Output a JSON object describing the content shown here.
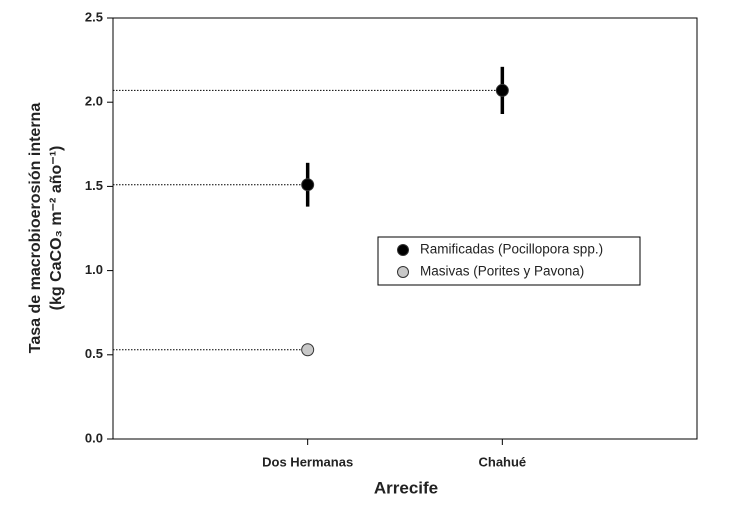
{
  "chart_data": {
    "type": "errorbar",
    "xlabel": "Arrecife",
    "ylabel": [
      "Tasa de macrobioerosión interna",
      "(kg CaCO₃ m⁻² año⁻¹)"
    ],
    "categories": [
      "Dos Hermanas",
      "Chahué"
    ],
    "series": [
      {
        "name": "Ramificadas  (Pocillopora spp.)",
        "color": "#000000",
        "values": [
          1.51,
          2.07
        ],
        "errors": [
          0.13,
          0.14
        ]
      },
      {
        "name": "Masivas (Porites y Pavona)",
        "color": "#c8c8c8",
        "values": [
          0.53,
          null
        ],
        "errors": [
          0.03,
          null
        ]
      }
    ],
    "ylim": [
      0,
      2.5
    ],
    "yticks": [
      {
        "value": 0,
        "label": "0.0"
      },
      0.5,
      {
        "value": 1,
        "label": "1.0"
      },
      1.5,
      {
        "value": 2,
        "label": "2.0"
      },
      2.5
    ],
    "reference_lines": true,
    "legend": "right"
  }
}
